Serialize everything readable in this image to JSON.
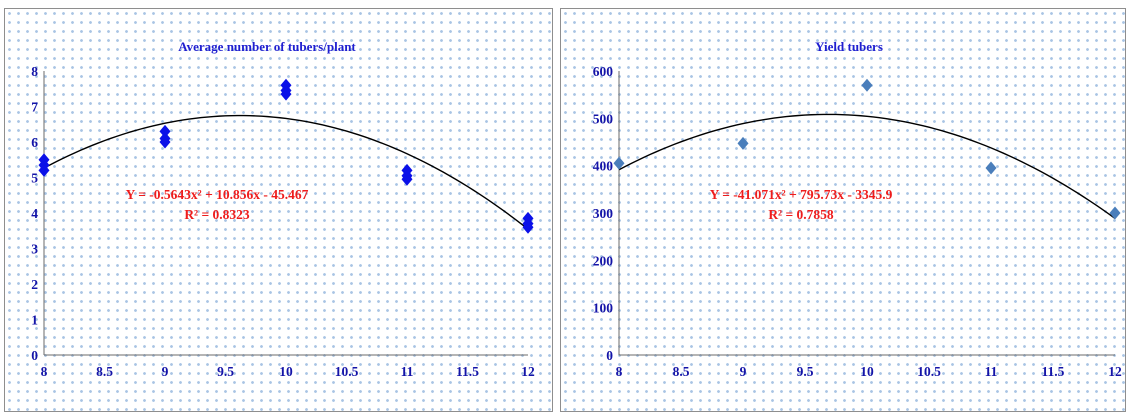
{
  "chart_data": [
    {
      "type": "scatter",
      "title": "Average number of tubers/plant",
      "x_ticks": [
        "8",
        "8.5",
        "9",
        "9.5",
        "10",
        "10.5",
        "11",
        "11.5",
        "12"
      ],
      "y_ticks": [
        "0",
        "1",
        "2",
        "3",
        "4",
        "5",
        "6",
        "7",
        "8"
      ],
      "xlim": [
        8,
        12
      ],
      "ylim": [
        0,
        8
      ],
      "points": [
        {
          "x": 8,
          "y": 5.2
        },
        {
          "x": 8,
          "y": 5.35
        },
        {
          "x": 8,
          "y": 5.5
        },
        {
          "x": 9,
          "y": 6.0
        },
        {
          "x": 9,
          "y": 6.1
        },
        {
          "x": 9,
          "y": 6.3
        },
        {
          "x": 10,
          "y": 7.35
        },
        {
          "x": 10,
          "y": 7.45
        },
        {
          "x": 10,
          "y": 7.6
        },
        {
          "x": 11,
          "y": 4.95
        },
        {
          "x": 11,
          "y": 5.05
        },
        {
          "x": 11,
          "y": 5.2
        },
        {
          "x": 12,
          "y": 3.6
        },
        {
          "x": 12,
          "y": 3.7
        },
        {
          "x": 12,
          "y": 3.85
        }
      ],
      "marker_color": "#0b10e8",
      "trendline": {
        "type": "polynomial",
        "coefficients": [
          -0.5643,
          10.856,
          -45.467
        ]
      },
      "equation": "Y = -0.5643x² + 10.856x - 45.467",
      "r_squared": "R² = 0.8323",
      "grid": false
    },
    {
      "type": "scatter",
      "title": "Yield tubers",
      "x_ticks": [
        "8",
        "8.5",
        "9",
        "9.5",
        "10",
        "10.5",
        "11",
        "11.5",
        "12"
      ],
      "y_ticks": [
        "0",
        "100",
        "200",
        "300",
        "400",
        "500",
        "600"
      ],
      "xlim": [
        8,
        12
      ],
      "ylim": [
        0,
        600
      ],
      "points": [
        {
          "x": 8,
          "y": 405
        },
        {
          "x": 9,
          "y": 447
        },
        {
          "x": 10,
          "y": 570
        },
        {
          "x": 11,
          "y": 395
        },
        {
          "x": 12,
          "y": 300
        }
      ],
      "marker_color": "#4a7ebb",
      "trendline": {
        "type": "polynomial",
        "coefficients": [
          -41.071,
          795.73,
          -3345.9
        ]
      },
      "equation": "Y = -41.071x² + 795.73x - 3345.9",
      "r_squared": "R² = 0.7858",
      "grid": false
    }
  ]
}
